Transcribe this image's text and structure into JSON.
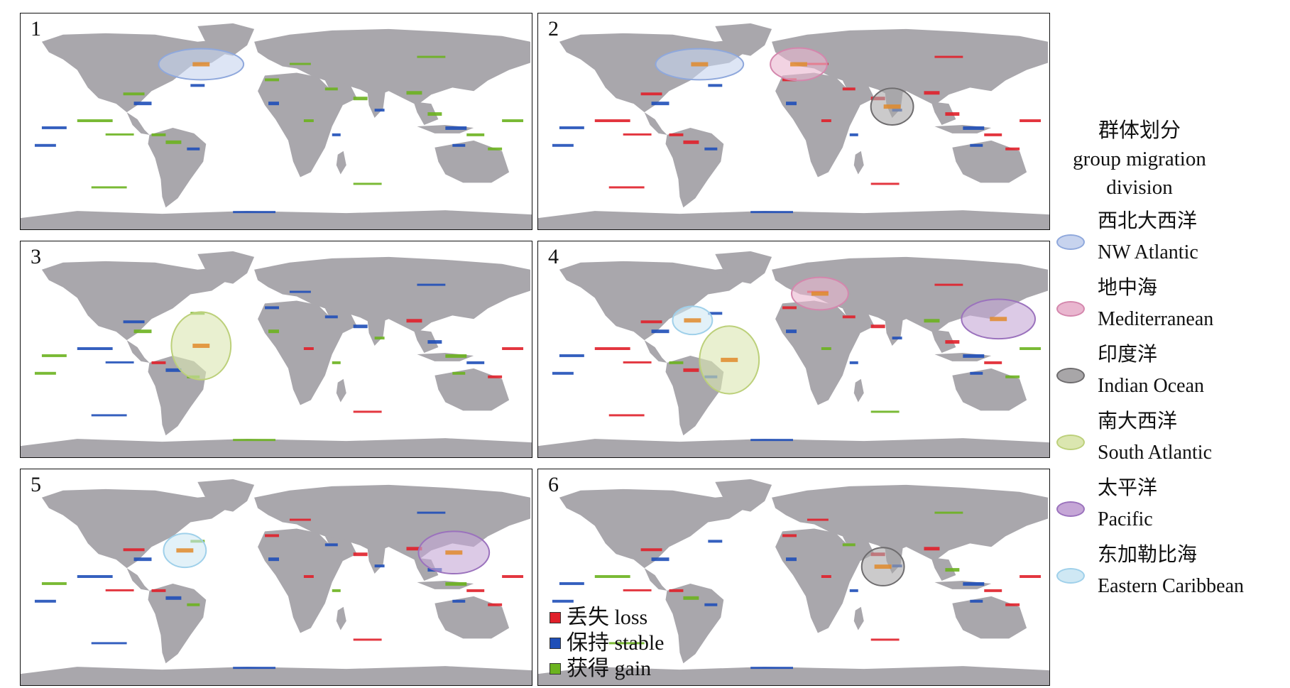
{
  "panels": [
    {
      "number": "1",
      "regions": [
        "nw_atlantic"
      ]
    },
    {
      "number": "2",
      "regions": [
        "nw_atlantic",
        "mediterranean",
        "indian_ocean"
      ]
    },
    {
      "number": "3",
      "regions": [
        "south_atlantic"
      ]
    },
    {
      "number": "4",
      "regions": [
        "mediterranean",
        "eastern_caribbean",
        "south_atlantic",
        "pacific"
      ]
    },
    {
      "number": "5",
      "regions": [
        "eastern_caribbean",
        "pacific"
      ]
    },
    {
      "number": "6",
      "regions": [
        "indian_ocean"
      ]
    }
  ],
  "status_legend": [
    {
      "label": "丢失 loss",
      "color": "#e0202a"
    },
    {
      "label": "保持 stable",
      "color": "#1f4fb8"
    },
    {
      "label": "获得 gain",
      "color": "#6bb31f"
    }
  ],
  "division_legend": {
    "title_zh": "群体划分",
    "title_en_1": "group migration",
    "title_en_2": "division",
    "items": [
      {
        "zh": "西北大西洋",
        "en": "NW Atlantic",
        "fill": "#c7d3ee",
        "stroke": "#8fa8dc"
      },
      {
        "zh": "地中海",
        "en": "Mediterranean",
        "fill": "#e9b6cf",
        "stroke": "#d487ad"
      },
      {
        "zh": "印度洋",
        "en": "Indian Ocean",
        "fill": "#a8a6a8",
        "stroke": "#6e6c6e"
      },
      {
        "zh": "南大西洋",
        "en": "South Atlantic",
        "fill": "#dbe6b0",
        "stroke": "#bcd07a"
      },
      {
        "zh": "太平洋",
        "en": "Pacific",
        "fill": "#c5a6d6",
        "stroke": "#9b72bd"
      },
      {
        "zh": "东加勒比海",
        "en": "Eastern Caribbean",
        "fill": "#cfe8f4",
        "stroke": "#9fd0ea"
      }
    ]
  },
  "colors": {
    "land": "#a9a7ac",
    "ocean": "#ffffff",
    "loss": "#e0202a",
    "stable": "#1f4fb8",
    "gain": "#6bb31f",
    "shift_center": "#e08a2a"
  }
}
